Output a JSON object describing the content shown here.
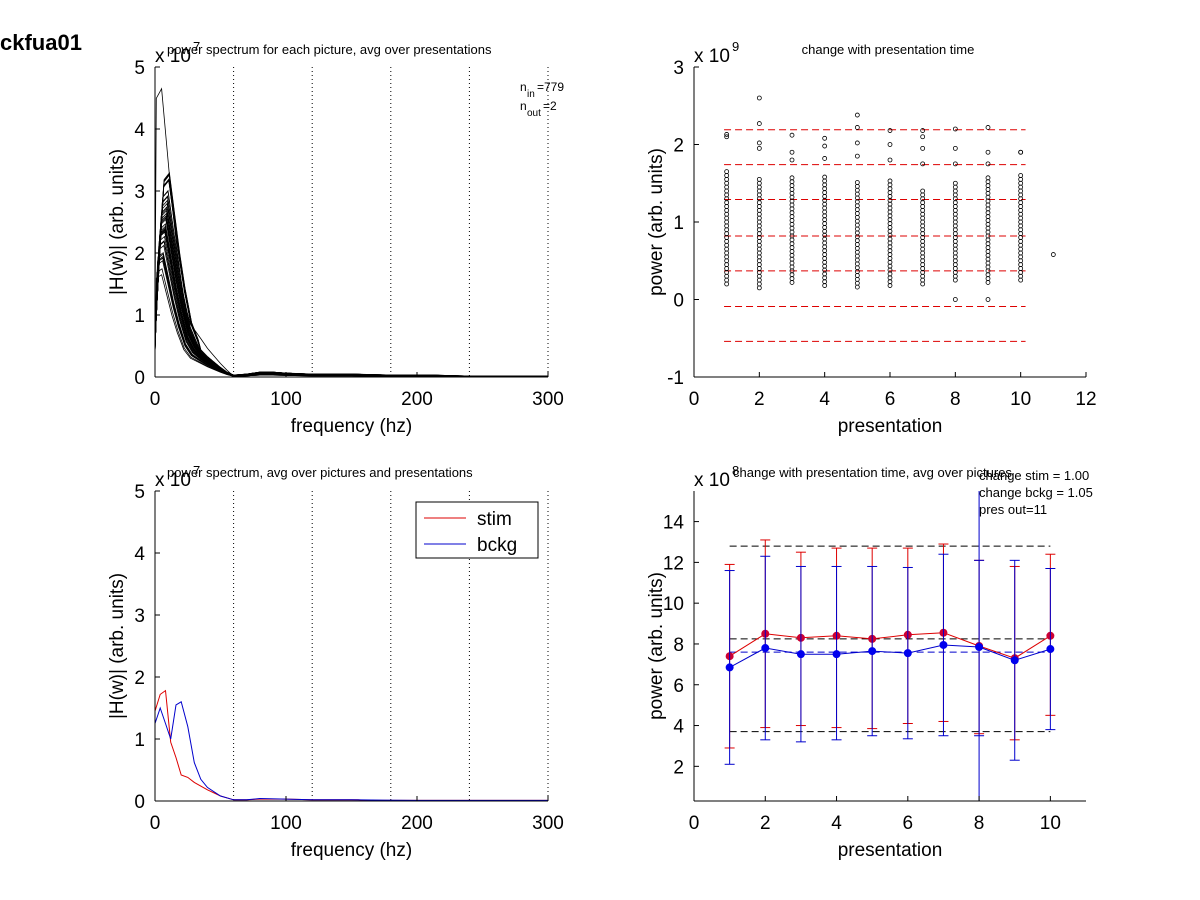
{
  "figure_label": "ckfua01",
  "chart_data": [
    {
      "id": "p1",
      "type": "line",
      "title": "power spectrum for each picture, avg over presentations",
      "xlabel": "frequency (hz)",
      "ylabel": "|H(w)| (arb. units)",
      "exponent_base": "x 10",
      "exponent_power": "7",
      "xlim": [
        0,
        300
      ],
      "ylim": [
        0,
        5
      ],
      "xticks": [
        0,
        100,
        200,
        300
      ],
      "yticks": [
        0,
        1,
        2,
        3,
        4,
        5
      ],
      "vlines": [
        60,
        120,
        180,
        240,
        300
      ],
      "annotation": {
        "n_in": "n",
        "n_in_sub": "in",
        "n_in_val": "=779",
        "n_out": "n",
        "n_out_sub": "out",
        "n_out_val": "=2"
      },
      "x": [
        0,
        4,
        8,
        12,
        16,
        20,
        25,
        30,
        35,
        40,
        45,
        50,
        55,
        60,
        70,
        80,
        90,
        100,
        120,
        150,
        180,
        210,
        240,
        270,
        300
      ],
      "profile": [
        0.6,
        2.9,
        3.0,
        2.4,
        1.8,
        1.3,
        0.8,
        0.55,
        0.4,
        0.3,
        0.22,
        0.14,
        0.07,
        0.02,
        0.03,
        0.05,
        0.05,
        0.04,
        0.03,
        0.03,
        0.02,
        0.02,
        0.01,
        0.01,
        0.01
      ],
      "peak_max": 4.65,
      "color": "#000000"
    },
    {
      "id": "p2",
      "type": "scatter",
      "title": "change with presentation time",
      "xlabel": "presentation",
      "ylabel": "power (arb. units)",
      "exponent_base": "x 10",
      "exponent_power": "9",
      "xlim": [
        0,
        12
      ],
      "ylim": [
        -1,
        3
      ],
      "xticks": [
        0,
        2,
        4,
        6,
        8,
        10,
        12
      ],
      "yticks": [
        -1,
        0,
        1,
        2,
        3
      ],
      "hlines": [
        2.19,
        1.74,
        1.29,
        0.82,
        0.37,
        -0.09,
        -0.54
      ],
      "hline_color": "#dd0000",
      "x_range": [
        1,
        10
      ],
      "x_extent": [
        0.92,
        10.15
      ],
      "columns": [
        {
          "x": 1,
          "min": 0.2,
          "max": 1.65,
          "outliers": [
            2.1,
            2.13
          ]
        },
        {
          "x": 2,
          "min": 0.15,
          "max": 1.55,
          "outliers": [
            1.95,
            2.02,
            2.27,
            2.6
          ]
        },
        {
          "x": 3,
          "min": 0.22,
          "max": 1.6,
          "outliers": [
            1.8,
            1.9,
            2.12
          ]
        },
        {
          "x": 4,
          "min": 0.18,
          "max": 1.58,
          "outliers": [
            1.82,
            1.98,
            2.08
          ]
        },
        {
          "x": 5,
          "min": 0.16,
          "max": 1.52,
          "outliers": [
            1.85,
            2.02,
            2.22,
            2.38
          ]
        },
        {
          "x": 6,
          "min": 0.18,
          "max": 1.56,
          "outliers": [
            1.8,
            2.0,
            2.18
          ]
        },
        {
          "x": 7,
          "min": 0.2,
          "max": 1.4,
          "outliers": [
            1.75,
            1.95,
            2.1,
            2.18
          ]
        },
        {
          "x": 8,
          "min": 0.25,
          "max": 1.5,
          "outliers": [
            0.0,
            1.75,
            1.95,
            2.2
          ]
        },
        {
          "x": 9,
          "min": 0.22,
          "max": 1.6,
          "outliers": [
            0.0,
            1.75,
            1.9,
            2.22
          ]
        },
        {
          "x": 10,
          "min": 0.25,
          "max": 1.6,
          "outliers": [
            1.9,
            1.9
          ]
        },
        {
          "x": 11,
          "min": 0.58,
          "max": 0.58,
          "outliers": []
        }
      ]
    },
    {
      "id": "p3",
      "type": "line",
      "title": "power spectrum, avg over pictures and presentations",
      "xlabel": "frequency (hz)",
      "ylabel": "|H(w)| (arb. units)",
      "exponent_base": "x 10",
      "exponent_power": "7",
      "xlim": [
        0,
        300
      ],
      "ylim": [
        0,
        5
      ],
      "xticks": [
        0,
        100,
        200,
        300
      ],
      "yticks": [
        0,
        1,
        2,
        3,
        4,
        5
      ],
      "vlines": [
        60,
        120,
        180,
        240,
        300
      ],
      "legend": {
        "position": "top-right",
        "entries": [
          "stim",
          "bckg"
        ]
      },
      "series": [
        {
          "name": "stim",
          "color": "#dd0000",
          "x": [
            0,
            4,
            8,
            12,
            16,
            20,
            25,
            30,
            40,
            50,
            60,
            70,
            80,
            100,
            120,
            140,
            155,
            160,
            200,
            250,
            300
          ],
          "y": [
            1.45,
            1.72,
            1.78,
            0.95,
            0.7,
            0.42,
            0.38,
            0.3,
            0.18,
            0.08,
            0.02,
            0.02,
            0.03,
            0.03,
            0.02,
            0.02,
            0.02,
            0.01,
            0.01,
            0.01,
            0.01
          ]
        },
        {
          "name": "bckg",
          "color": "#0000cc",
          "x": [
            0,
            4,
            8,
            12,
            16,
            20,
            25,
            30,
            35,
            40,
            50,
            60,
            70,
            80,
            100,
            120,
            150,
            200,
            250,
            300
          ],
          "y": [
            1.25,
            1.5,
            1.25,
            1.0,
            1.55,
            1.6,
            1.2,
            0.62,
            0.35,
            0.22,
            0.08,
            0.02,
            0.02,
            0.04,
            0.03,
            0.02,
            0.02,
            0.01,
            0.01,
            0.01
          ]
        }
      ]
    },
    {
      "id": "p4",
      "type": "line",
      "title": "change with presentation time, avg over pictures",
      "xlabel": "presentation",
      "ylabel": "power (arb. units)",
      "exponent_base": "x 10",
      "exponent_power": "8",
      "xlim": [
        0,
        11
      ],
      "ylim": [
        0.3,
        15.5
      ],
      "xticks": [
        0,
        2,
        4,
        6,
        8,
        10
      ],
      "yticks": [
        2,
        4,
        6,
        8,
        10,
        12,
        14
      ],
      "hlines_black": [
        12.8,
        8.25,
        3.7
      ],
      "hline_range": [
        1,
        10
      ],
      "hline_blue": 7.6,
      "annotation_lines": [
        "change stim = 1.00",
        "change bckg = 1.05",
        "pres out=11"
      ],
      "outlier_line": {
        "x": 8,
        "from": 0.3,
        "to": 15.5
      },
      "series": [
        {
          "name": "stim",
          "color": "#dd0000",
          "marker_color": "#cc0033",
          "x": [
            1,
            2,
            3,
            4,
            5,
            6,
            7,
            8,
            9,
            10
          ],
          "y": [
            7.4,
            8.5,
            8.3,
            8.4,
            8.25,
            8.45,
            8.55,
            7.9,
            7.3,
            8.4
          ],
          "err_low": [
            2.9,
            3.9,
            4.0,
            3.9,
            3.85,
            4.1,
            4.2,
            3.6,
            3.3,
            4.5
          ],
          "err_high": [
            11.9,
            13.1,
            12.5,
            12.7,
            12.7,
            12.7,
            12.9,
            12.1,
            11.8,
            12.4
          ]
        },
        {
          "name": "bckg",
          "color": "#0000cc",
          "marker_color": "#0000ee",
          "x": [
            1,
            2,
            3,
            4,
            5,
            6,
            7,
            8,
            9,
            10
          ],
          "y": [
            6.85,
            7.8,
            7.5,
            7.5,
            7.65,
            7.55,
            7.95,
            7.85,
            7.2,
            7.75
          ],
          "err_low": [
            2.1,
            3.3,
            3.2,
            3.3,
            3.5,
            3.35,
            3.5,
            3.5,
            2.3,
            3.8
          ],
          "err_high": [
            11.6,
            12.3,
            11.8,
            11.8,
            11.8,
            11.75,
            12.4,
            12.1,
            12.1,
            11.7
          ]
        }
      ]
    }
  ]
}
